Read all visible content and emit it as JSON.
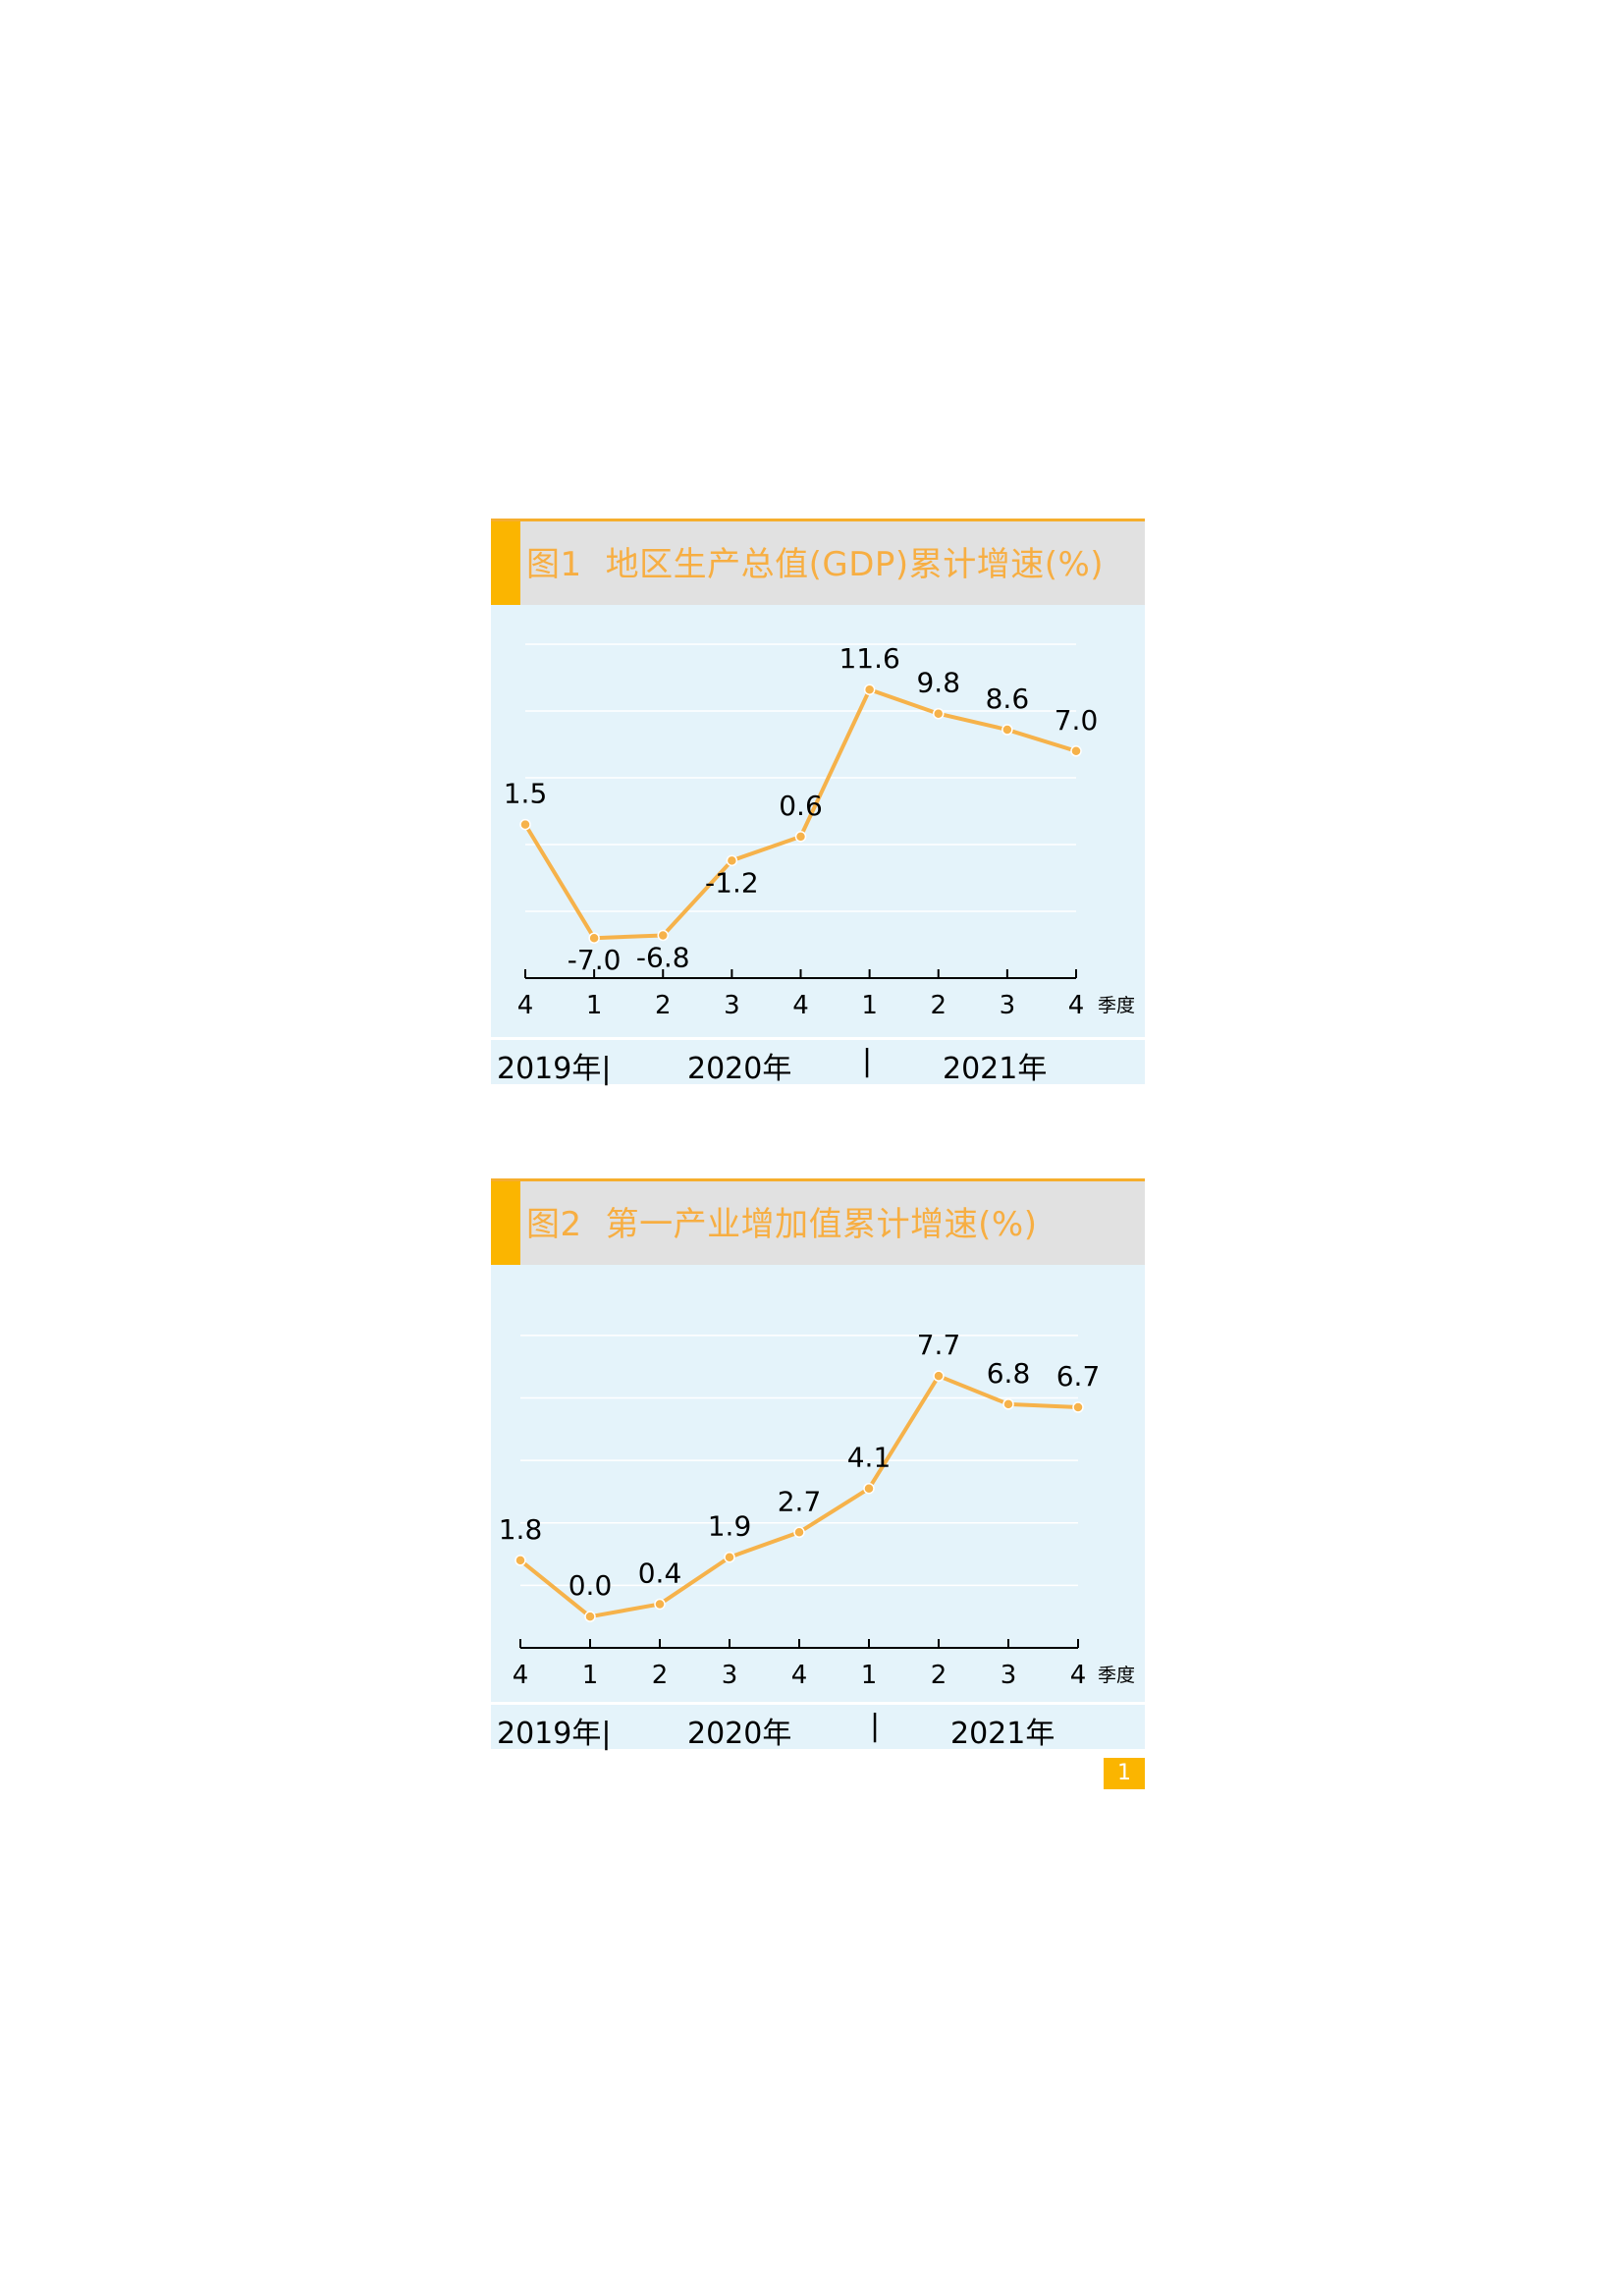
{
  "charts": [
    {
      "id": "fig1",
      "title_num": "图1",
      "title_text": "地区生产总值(GDP)累计增速(%)",
      "x_unit": "季度",
      "years": [
        "2019年|",
        "2020年",
        "|",
        "2021年"
      ]
    },
    {
      "id": "fig2",
      "title_num": "图2",
      "title_text": "第一产业增加值累计增速(%)",
      "x_unit": "季度",
      "years": [
        "2019年|",
        "2020年",
        "|",
        "2021年"
      ]
    }
  ],
  "page_number": "1",
  "colors": {
    "line": "#f6b24a",
    "accent": "#fbb500",
    "plot_bg": "#e4f3fa",
    "title_bg": "#e1e1e1",
    "title_text": "#f7ae42"
  },
  "chart_data": [
    {
      "type": "line",
      "title": "图1  地区生产总值(GDP)累计增速(%)",
      "categories": [
        "4",
        "1",
        "2",
        "3",
        "4",
        "1",
        "2",
        "3",
        "4"
      ],
      "category_groups": [
        "2019年",
        "2020年",
        "2020年",
        "2020年",
        "2020年",
        "2021年",
        "2021年",
        "2021年",
        "2021年"
      ],
      "values": [
        1.5,
        -7.0,
        -6.8,
        -1.2,
        0.6,
        11.6,
        9.8,
        8.6,
        7.0
      ],
      "labels": [
        "1.5",
        "-7.0",
        "-6.8",
        "-1.2",
        "0.6",
        "11.6",
        "9.8",
        "8.6",
        "7.0"
      ],
      "ylim": [
        -10,
        15
      ],
      "grid": true,
      "xlabel": "季度",
      "ylabel": ""
    },
    {
      "type": "line",
      "title": "图2  第一产业增加值累计增速(%)",
      "categories": [
        "4",
        "1",
        "2",
        "3",
        "4",
        "1",
        "2",
        "3",
        "4"
      ],
      "category_groups": [
        "2019年",
        "2020年",
        "2020年",
        "2020年",
        "2020年",
        "2021年",
        "2021年",
        "2021年",
        "2021年"
      ],
      "values": [
        1.8,
        0.0,
        0.4,
        1.9,
        2.7,
        4.1,
        7.7,
        6.8,
        6.7
      ],
      "labels": [
        "1.8",
        "0.0",
        "0.4",
        "1.9",
        "2.7",
        "4.1",
        "7.7",
        "6.8",
        "6.7"
      ],
      "ylim": [
        -1,
        10
      ],
      "grid": true,
      "xlabel": "季度",
      "ylabel": ""
    }
  ]
}
